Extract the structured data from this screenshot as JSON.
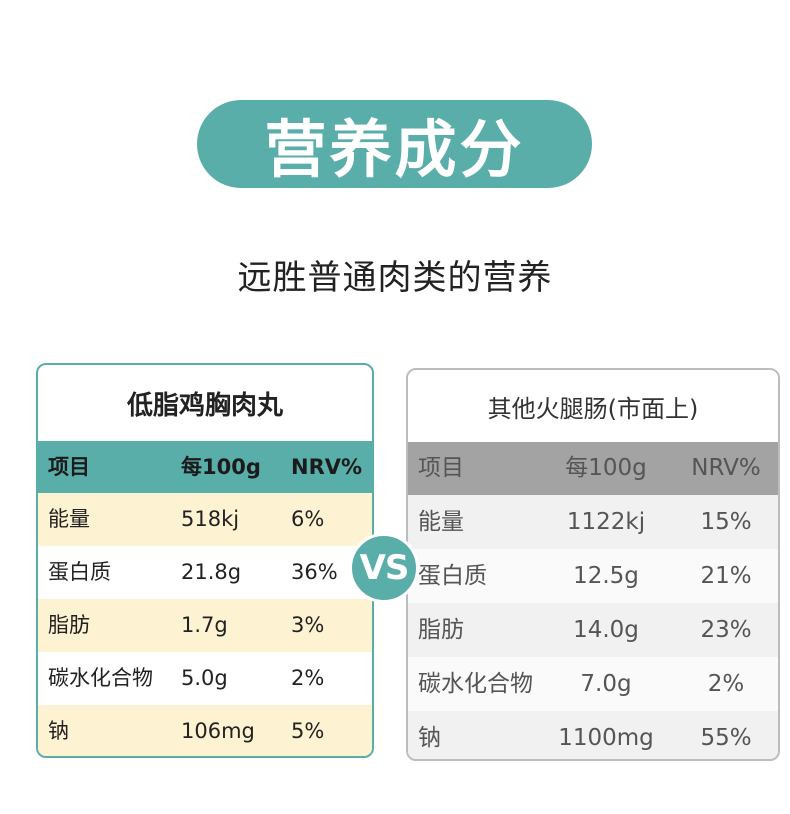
{
  "header": {
    "title": "营养成分",
    "subtitle": "远胜普通肉类的营养"
  },
  "vs_label": "VS",
  "left_table": {
    "title": "低脂鸡胸肉丸",
    "columns": [
      "项目",
      "每100g",
      "NRV%"
    ],
    "rows": [
      [
        "能量",
        "518kj",
        "6%"
      ],
      [
        "蛋白质",
        "21.8g",
        "36%"
      ],
      [
        "脂肪",
        "1.7g",
        "3%"
      ],
      [
        "碳水化合物",
        "5.0g",
        "2%"
      ],
      [
        "钠",
        "106mg",
        "5%"
      ]
    ]
  },
  "right_table": {
    "title": "其他火腿肠(市面上)",
    "columns": [
      "项目",
      "每100g",
      "NRV%"
    ],
    "rows": [
      [
        "能量",
        "1122kj",
        "15%"
      ],
      [
        "蛋白质",
        "12.5g",
        "21%"
      ],
      [
        "脂肪",
        "14.0g",
        "23%"
      ],
      [
        "碳水化合物",
        "7.0g",
        "2%"
      ],
      [
        "钠",
        "1100mg",
        "55%"
      ]
    ]
  },
  "colors": {
    "accent_teal": "#5aaeaa",
    "cream_row": "#fdf3d2",
    "gray_header": "#a3a3a3"
  }
}
